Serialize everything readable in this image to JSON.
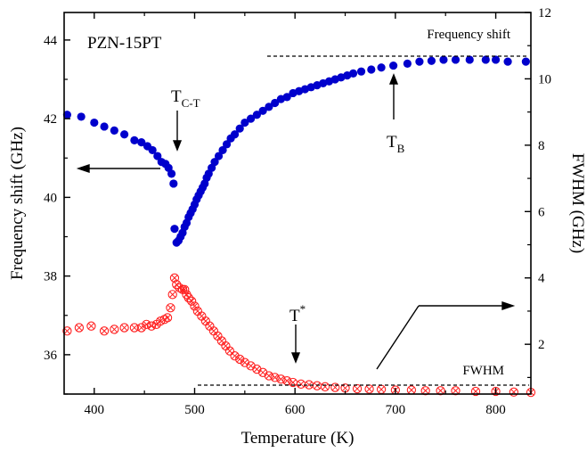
{
  "chart_data": {
    "type": "scatter",
    "title": "PZN-15PT",
    "xlabel": "Temperature (K)",
    "ylabel_left": "Frequency shift (GHz)",
    "ylabel_right": "FWHM (GHz)",
    "xlim": [
      370,
      835
    ],
    "ylim_left": [
      35.0,
      44.7
    ],
    "ylim_right": [
      0.5,
      12.0
    ],
    "x_ticks": [
      400,
      500,
      600,
      700,
      800
    ],
    "y_left_ticks": [
      36,
      38,
      40,
      42,
      44
    ],
    "y_right_ticks": [
      2,
      4,
      6,
      8,
      10,
      12
    ],
    "grid": false,
    "colors": {
      "frequency_shift": "#0000cc",
      "fwhm": "#ff2020"
    },
    "series": [
      {
        "name": "Frequency shift",
        "axis": "left",
        "marker": "filled-circle",
        "x": [
          373,
          387,
          400,
          410,
          420,
          430,
          440,
          447,
          453,
          458,
          463,
          467,
          471,
          474,
          477,
          479,
          480,
          482,
          484,
          486,
          488,
          490,
          492,
          494,
          496,
          498,
          500,
          502,
          504,
          506,
          508,
          510,
          512,
          514,
          517,
          520,
          524,
          528,
          532,
          536,
          540,
          545,
          550,
          556,
          562,
          568,
          574,
          580,
          586,
          592,
          598,
          604,
          610,
          616,
          622,
          628,
          634,
          640,
          646,
          652,
          658,
          666,
          676,
          686,
          698,
          712,
          724,
          736,
          748,
          760,
          774,
          790,
          800,
          812,
          830
        ],
        "y": [
          42.1,
          42.05,
          41.9,
          41.8,
          41.7,
          41.6,
          41.45,
          41.4,
          41.3,
          41.2,
          41.05,
          40.9,
          40.85,
          40.75,
          40.6,
          40.35,
          39.2,
          38.85,
          38.9,
          39.0,
          39.1,
          39.25,
          39.35,
          39.5,
          39.6,
          39.7,
          39.82,
          39.95,
          40.05,
          40.15,
          40.25,
          40.35,
          40.5,
          40.6,
          40.75,
          40.9,
          41.05,
          41.2,
          41.35,
          41.5,
          41.6,
          41.75,
          41.9,
          42.0,
          42.1,
          42.2,
          42.3,
          42.4,
          42.5,
          42.55,
          42.65,
          42.7,
          42.75,
          42.8,
          42.85,
          42.9,
          42.95,
          43.0,
          43.05,
          43.1,
          43.15,
          43.2,
          43.25,
          43.3,
          43.35,
          43.4,
          43.45,
          43.47,
          43.5,
          43.5,
          43.5,
          43.5,
          43.5,
          43.45,
          43.45
        ]
      },
      {
        "name": "FWHM",
        "axis": "right",
        "marker": "circle-x",
        "x": [
          373,
          385,
          397,
          410,
          420,
          430,
          440,
          447,
          452,
          457,
          462,
          466,
          470,
          473,
          476,
          478,
          480,
          482,
          485,
          488,
          490,
          492,
          494,
          497,
          500,
          503,
          507,
          511,
          515,
          519,
          523,
          527,
          531,
          535,
          540,
          545,
          550,
          556,
          562,
          568,
          574,
          580,
          586,
          592,
          598,
          606,
          614,
          622,
          630,
          640,
          650,
          662,
          674,
          686,
          700,
          716,
          730,
          745,
          760,
          780,
          800,
          818,
          835
        ],
        "y": [
          2.4,
          2.5,
          2.55,
          2.4,
          2.45,
          2.5,
          2.5,
          2.5,
          2.6,
          2.55,
          2.6,
          2.7,
          2.75,
          2.8,
          3.1,
          3.5,
          4.0,
          3.8,
          3.7,
          3.65,
          3.65,
          3.5,
          3.4,
          3.3,
          3.15,
          3.0,
          2.85,
          2.7,
          2.55,
          2.4,
          2.25,
          2.1,
          1.95,
          1.8,
          1.65,
          1.55,
          1.45,
          1.35,
          1.25,
          1.15,
          1.05,
          1.0,
          0.95,
          0.9,
          0.85,
          0.8,
          0.78,
          0.75,
          0.72,
          0.7,
          0.68,
          0.66,
          0.65,
          0.64,
          0.62,
          0.62,
          0.6,
          0.6,
          0.6,
          0.58,
          0.58,
          0.56,
          0.55
        ]
      }
    ],
    "annotations": {
      "tct_main": "T",
      "tct_sub": "C-T",
      "tb_main": "T",
      "tb_sub": "B",
      "tstar_main": "T",
      "tstar_sup": "*",
      "freq_label": "Frequency shift",
      "fwhm_label": "FWHM"
    }
  }
}
